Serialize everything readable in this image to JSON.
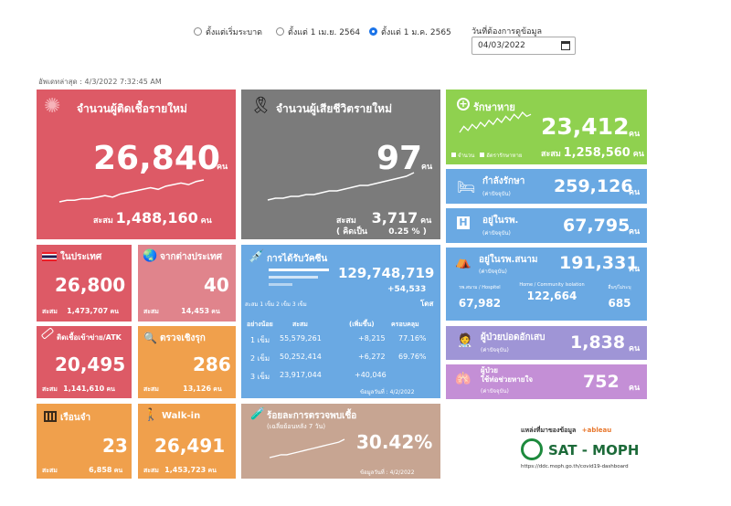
{
  "filters": {
    "options": [
      {
        "label": "ตั้งแต่เริ่มระบาด",
        "selected": false
      },
      {
        "label": "ตั้งแต่ 1 เม.ย. 2564",
        "selected": false
      },
      {
        "label": "ตั้งแต่ 1 ม.ค. 2565",
        "selected": true
      }
    ],
    "date_label": "วันที่ต้องการดูข้อมูล",
    "date_value": "04/03/2022"
  },
  "updated": "อัพเดทล่าสุด : 4/3/2022 7:32:45 AM",
  "unit": "คน",
  "cases": {
    "title": "จำนวนผู้ติดเชื้อรายใหม่",
    "value": "26,840",
    "cum_label": "สะสม",
    "cum": "1,488,160"
  },
  "deaths": {
    "title": "จำนวนผู้เสียชีวิตรายใหม่",
    "value": "97",
    "cum_label": "สะสม",
    "cum": "3,717",
    "rate_label": "( คิดเป็น",
    "rate": "0.25 %",
    "rate_close": ")"
  },
  "recovered": {
    "title": "รักษาหาย",
    "value": "23,412",
    "legend1": "จำนวน",
    "legend2": "อัตรารักษาหาย",
    "cum_label": "สะสม",
    "cum": "1,258,560"
  },
  "treating": {
    "title": "กำลังรักษา",
    "sub": "(ค่าปัจจุบัน)",
    "value": "259,126"
  },
  "hospital": {
    "title": "อยู่ในรพ.",
    "sub": "(ค่าปัจจุบัน)",
    "value": "67,795"
  },
  "domestic": {
    "title": "ในประเทศ",
    "value": "26,800",
    "cum_label": "สะสม",
    "cum": "1,473,707"
  },
  "abroad": {
    "title": "จากต่างประเทศ",
    "value": "40",
    "cum_label": "สะสม",
    "cum": "14,453"
  },
  "vaccine": {
    "title": "การได้รับวัคซีน",
    "total": "129,748,719",
    "delta": "+54,533",
    "unit": "โดส",
    "legend": "สะสม  1 เข็ม  2 เข็ม  3 เข็ม",
    "headers": [
      "อย่างน้อย",
      "สะสม",
      "(เพิ่มขึ้น)",
      "ครอบคลุม"
    ],
    "rows": [
      [
        "1 เข็ม",
        "55,579,261",
        "+8,215",
        "77.16%"
      ],
      [
        "2 เข็ม",
        "50,252,414",
        "+6,272",
        "69.76%"
      ],
      [
        "3 เข็ม",
        "23,917,044",
        "+40,046",
        ""
      ]
    ],
    "date": "ข้อมูลวันที่ : 4/2/2022"
  },
  "field": {
    "title": "อยู่ในรพ.สนาม",
    "sub": "(ค่าปัจจุบัน)",
    "value": "191,331",
    "cols": [
      {
        "label": "รพ.สนาม / Hospitel",
        "value": "67,982"
      },
      {
        "label": "Home / Community Isolation",
        "value": "122,664"
      },
      {
        "label": "อื่นๆ/ไม่ระบุ",
        "value": "685"
      }
    ]
  },
  "atk": {
    "title": "ติดเชื้อเข้าข่าย/ATK",
    "value": "20,495",
    "cum_label": "สะสม",
    "cum": "1,141,610"
  },
  "active_search": {
    "title": "ตรวจเชิงรุก",
    "value": "286",
    "cum_label": "สะสม",
    "cum": "13,126"
  },
  "pneumonia": {
    "title": "ผู้ป่วยปอดอักเสบ",
    "sub": "(ค่าปัจจุบัน)",
    "value": "1,838"
  },
  "ventilator": {
    "title1": "ผู้ป่วย",
    "title2": "ใช้ท่อช่วยหายใจ",
    "sub": "(ค่าปัจจุบัน)",
    "value": "752"
  },
  "prison": {
    "title": "เรือนจำ",
    "value": "23",
    "cum_label": "สะสม",
    "cum": "6,858"
  },
  "walkin": {
    "title": "Walk-in",
    "value": "26,491",
    "cum_label": "สะสม",
    "cum": "1,453,723"
  },
  "positivity": {
    "title": "ร้อยละการตรวจพบเชื้อ",
    "sub": "(เฉลี่ยย้อนหลัง 7 วัน)",
    "value": "30.42%",
    "date": "ข้อมูลวันที่ : 4/2/2022"
  },
  "source": {
    "label": "แหล่งที่มาของข้อมูล",
    "tableau": "+ableau",
    "brand": "SAT - MOPH",
    "url": "https://ddc.moph.go.th/covid19-dashboard"
  },
  "colors": {
    "cases": "#dd5a66",
    "deaths": "#7b7b7b",
    "green": "#8fd14f",
    "blue": "#6aa9e3",
    "orange": "#f0a04c",
    "purple": "#9f95d6",
    "pink": "#c48fd6",
    "tan": "#c7a592"
  },
  "sparks": {
    "cases": [
      2,
      3,
      3,
      4,
      4,
      5,
      6,
      5,
      7,
      8,
      9,
      10,
      11,
      10,
      12,
      13,
      14,
      13,
      15,
      16
    ],
    "deaths": [
      1,
      2,
      2,
      3,
      3,
      4,
      4,
      5,
      6,
      6,
      7,
      8,
      9,
      9,
      10,
      11,
      12,
      13,
      14,
      16
    ],
    "recovered": [
      3,
      6,
      4,
      7,
      5,
      8,
      6,
      9,
      7,
      10,
      8,
      11,
      9,
      12,
      10,
      13,
      11,
      12
    ],
    "positivity": [
      2,
      3,
      4,
      4,
      5,
      6,
      7,
      8,
      9,
      10,
      11,
      12,
      13,
      15
    ]
  }
}
